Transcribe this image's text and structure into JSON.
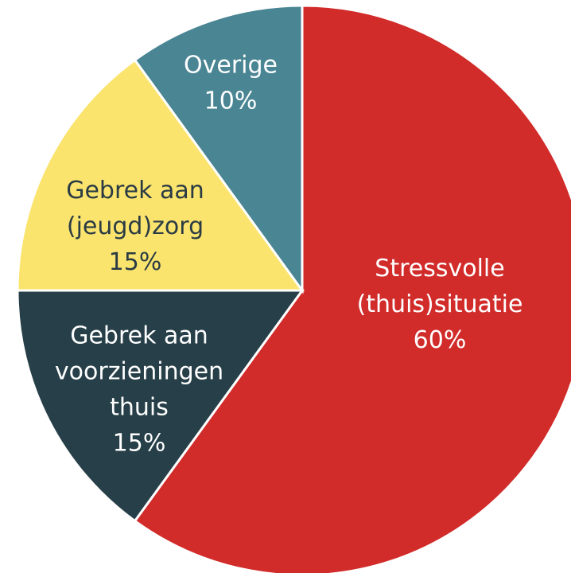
{
  "chart_data": {
    "type": "pie",
    "categories": [
      [
        "Stressvolle",
        "(thuis)situatie"
      ],
      [
        "Gebrek aan",
        "voorzieningen",
        "thuis"
      ],
      [
        "Gebrek aan",
        "(jeugd)zorg"
      ],
      [
        "Overige"
      ]
    ],
    "values": [
      60,
      15,
      15,
      10
    ],
    "value_labels": [
      "60%",
      "15%",
      "15%",
      "10%"
    ],
    "colors": [
      "#d12b2a",
      "#263f48",
      "#fbe46e",
      "#4a8593"
    ]
  }
}
